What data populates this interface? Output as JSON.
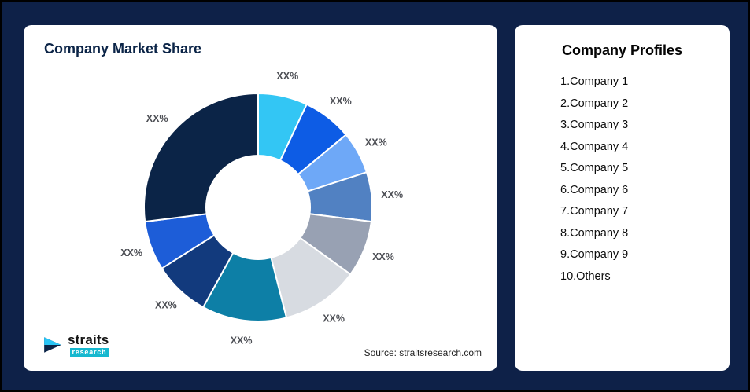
{
  "left_card": {
    "title": "Company Market Share",
    "source": "Source: straitsresearch.com",
    "logo": {
      "name": "straits",
      "sub": "research"
    }
  },
  "right_card": {
    "title": "Company Profiles",
    "items": [
      "1.Company 1",
      "2.Company 2",
      "3.Company 3",
      "4.Company 4",
      "5.Company 5",
      "6.Company 6",
      "7.Company 7",
      "8.Company 8",
      "9.Company 9",
      "10.Others"
    ]
  },
  "chart_data": {
    "type": "pie",
    "donut": true,
    "title": "Company Market Share",
    "legend": "none",
    "start_angle_deg": 0,
    "direction": "clockwise",
    "segments": [
      {
        "name": "Company 1",
        "label": "XX%",
        "value": 7,
        "color": "#33c6f4"
      },
      {
        "name": "Company 2",
        "label": "XX%",
        "value": 7,
        "color": "#0d5ce5"
      },
      {
        "name": "Company 3",
        "label": "XX%",
        "value": 6,
        "color": "#6ea8f7"
      },
      {
        "name": "Company 4",
        "label": "XX%",
        "value": 7,
        "color": "#5181c2"
      },
      {
        "name": "Company 5",
        "label": "XX%",
        "value": 8,
        "color": "#98a1b3"
      },
      {
        "name": "Company 6",
        "label": "XX%",
        "value": 11,
        "color": "#d7dbe1"
      },
      {
        "name": "Company 7",
        "label": "XX%",
        "value": 12,
        "color": "#0d7fa6"
      },
      {
        "name": "Company 8",
        "label": "XX%",
        "value": 8,
        "color": "#123a7d"
      },
      {
        "name": "Company 9",
        "label": "XX%",
        "value": 7,
        "color": "#1d5dd8"
      },
      {
        "name": "Others",
        "label": "XX%",
        "value": 27,
        "color": "#0b2447"
      }
    ]
  },
  "colors": {
    "page_background": "#0e2148",
    "card_background": "#ffffff",
    "title_text": "#0b2447",
    "segment_label": "#4d4f55",
    "logo_accent": "#16b8cf"
  }
}
